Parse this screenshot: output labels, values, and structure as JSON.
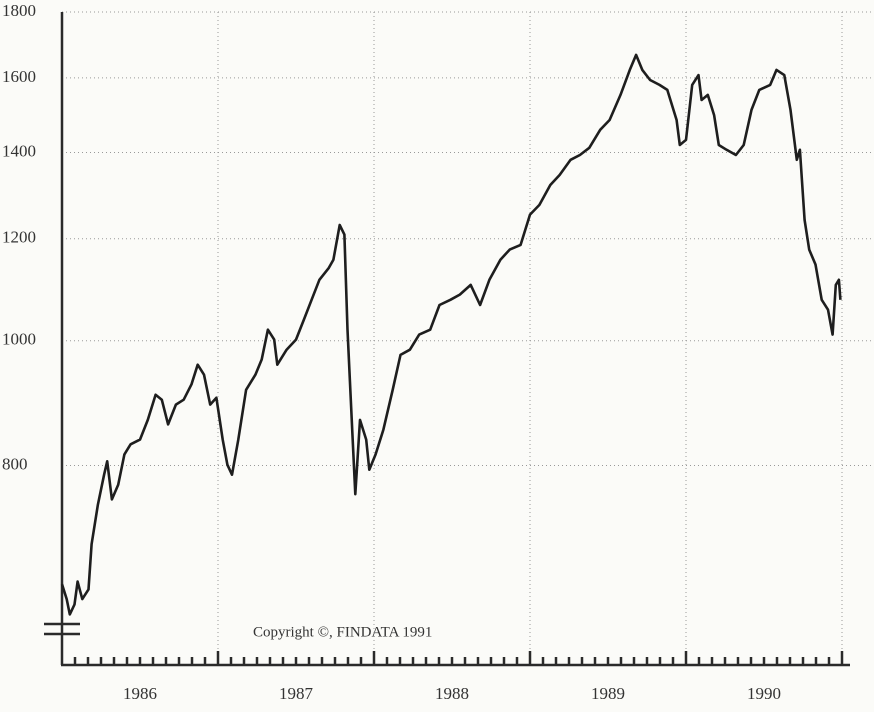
{
  "chart_data": {
    "type": "line",
    "annotation": "Copyright ©, FINDATA 1991",
    "log_scale": true,
    "grid": true,
    "color": "#1e1e1e",
    "xlim": [
      1986,
      1991
    ],
    "xticks": [
      1987,
      1988,
      1989,
      1990,
      1991
    ],
    "year_labels": [
      "1986",
      "1987",
      "1988",
      "1989",
      "1990"
    ],
    "ylim": [
      560,
      1800
    ],
    "yticks": [
      800,
      1000,
      1200,
      1400,
      1600,
      1800
    ],
    "x": [
      1986.0,
      1986.03,
      1986.05,
      1986.08,
      1986.1,
      1986.13,
      1986.17,
      1986.19,
      1986.23,
      1986.27,
      1986.29,
      1986.32,
      1986.36,
      1986.4,
      1986.44,
      1986.5,
      1986.55,
      1986.6,
      1986.64,
      1986.68,
      1986.73,
      1986.78,
      1986.83,
      1986.87,
      1986.91,
      1986.95,
      1986.99,
      1987.03,
      1987.06,
      1987.09,
      1987.13,
      1987.18,
      1987.24,
      1987.28,
      1987.32,
      1987.36,
      1987.38,
      1987.44,
      1987.5,
      1987.55,
      1987.6,
      1987.65,
      1987.71,
      1987.74,
      1987.78,
      1987.81,
      1987.83,
      1987.86,
      1987.88,
      1987.91,
      1987.95,
      1987.97,
      1988.01,
      1988.06,
      1988.12,
      1988.17,
      1988.23,
      1988.29,
      1988.36,
      1988.42,
      1988.49,
      1988.55,
      1988.62,
      1988.68,
      1988.74,
      1988.81,
      1988.87,
      1988.94,
      1989.0,
      1989.06,
      1989.13,
      1989.19,
      1989.26,
      1989.32,
      1989.38,
      1989.45,
      1989.51,
      1989.58,
      1989.64,
      1989.68,
      1989.72,
      1989.77,
      1989.83,
      1989.88,
      1989.94,
      1989.96,
      1990.0,
      1990.04,
      1990.08,
      1990.1,
      1990.14,
      1990.18,
      1990.21,
      1990.26,
      1990.32,
      1990.37,
      1990.42,
      1990.47,
      1990.54,
      1990.58,
      1990.63,
      1990.67,
      1990.71,
      1990.73,
      1990.76,
      1990.79,
      1990.83,
      1990.87,
      1990.91,
      1990.94,
      1990.96,
      1990.98,
      1990.99
    ],
    "values": [
      647,
      630,
      613,
      624,
      650,
      630,
      641,
      695,
      746,
      787,
      806,
      753,
      773,
      816,
      831,
      838,
      868,
      908,
      900,
      861,
      892,
      900,
      925,
      958,
      941,
      892,
      903,
      838,
      801,
      787,
      838,
      916,
      941,
      967,
      1020,
      1002,
      958,
      984,
      1002,
      1038,
      1076,
      1115,
      1139,
      1156,
      1230,
      1209,
      1020,
      853,
      760,
      868,
      838,
      794,
      816,
      853,
      916,
      975,
      984,
      1011,
      1020,
      1066,
      1076,
      1086,
      1105,
      1066,
      1115,
      1156,
      1177,
      1187,
      1253,
      1275,
      1321,
      1345,
      1382,
      1394,
      1412,
      1458,
      1484,
      1552,
      1623,
      1667,
      1623,
      1594,
      1580,
      1566,
      1484,
      1419,
      1432,
      1580,
      1608,
      1538,
      1552,
      1497,
      1419,
      1407,
      1394,
      1419,
      1511,
      1566,
      1580,
      1623,
      1608,
      1511,
      1382,
      1407,
      1241,
      1177,
      1146,
      1076,
      1057,
      1011,
      1105,
      1115,
      1076
    ]
  }
}
